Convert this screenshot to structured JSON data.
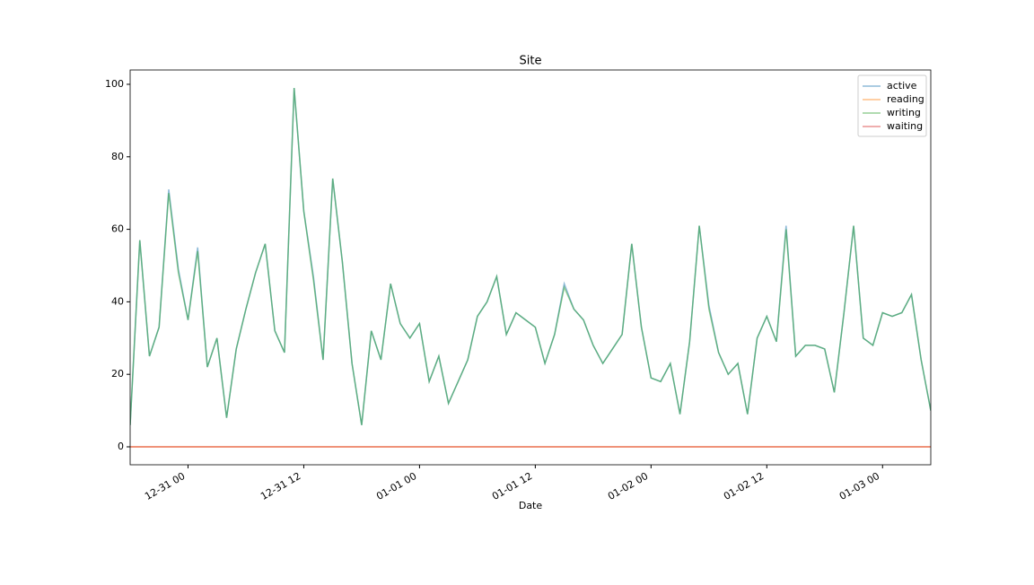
{
  "chart_data": {
    "type": "line",
    "title": "Site",
    "xlabel": "Date",
    "x": [
      "12-30 18",
      "12-30 19",
      "12-30 20",
      "12-30 21",
      "12-30 22",
      "12-30 23",
      "12-31 00",
      "12-31 01",
      "12-31 02",
      "12-31 03",
      "12-31 04",
      "12-31 05",
      "12-31 06",
      "12-31 07",
      "12-31 08",
      "12-31 09",
      "12-31 10",
      "12-31 11",
      "12-31 12",
      "12-31 13",
      "12-31 14",
      "12-31 15",
      "12-31 16",
      "12-31 17",
      "12-31 18",
      "12-31 19",
      "12-31 20",
      "12-31 21",
      "12-31 22",
      "12-31 23",
      "01-01 00",
      "01-01 01",
      "01-01 02",
      "01-01 03",
      "01-01 04",
      "01-01 05",
      "01-01 06",
      "01-01 07",
      "01-01 08",
      "01-01 09",
      "01-01 10",
      "01-01 11",
      "01-01 12",
      "01-01 13",
      "01-01 14",
      "01-01 15",
      "01-01 16",
      "01-01 17",
      "01-01 18",
      "01-01 19",
      "01-01 20",
      "01-01 21",
      "01-01 22",
      "01-01 23",
      "01-02 00",
      "01-02 01",
      "01-02 02",
      "01-02 03",
      "01-02 04",
      "01-02 05",
      "01-02 06",
      "01-02 07",
      "01-02 08",
      "01-02 09",
      "01-02 10",
      "01-02 11",
      "01-02 12",
      "01-02 13",
      "01-02 14",
      "01-02 15",
      "01-02 16",
      "01-02 17",
      "01-02 18",
      "01-02 19",
      "01-02 20",
      "01-02 21",
      "01-02 22",
      "01-02 23",
      "01-03 00",
      "01-03 01",
      "01-03 02",
      "01-03 03",
      "01-03 04",
      "01-03 05"
    ],
    "series": [
      {
        "name": "active",
        "color": "#1f77b4",
        "values": [
          6,
          57,
          25,
          33,
          71,
          49,
          35,
          55,
          22,
          30,
          8,
          27,
          38,
          48,
          56,
          32,
          26,
          99,
          65,
          47,
          24,
          74,
          51,
          23,
          6,
          32,
          24,
          45,
          34,
          30,
          34,
          18,
          25,
          12,
          18,
          24,
          36,
          40,
          47,
          31,
          37,
          35,
          33,
          23,
          31,
          45,
          38,
          35,
          28,
          23,
          27,
          31,
          56,
          33,
          19,
          18,
          23,
          9,
          29,
          61,
          39,
          26,
          20,
          23,
          9,
          30,
          36,
          29,
          61,
          25,
          28,
          28,
          27,
          15,
          37,
          61,
          30,
          28,
          37,
          36,
          37,
          42,
          24,
          10
        ]
      },
      {
        "name": "reading",
        "color": "#ff7f0e",
        "values": [
          0,
          0,
          0,
          0,
          0,
          0,
          0,
          0,
          0,
          0,
          0,
          0,
          0,
          0,
          0,
          0,
          0,
          0,
          0,
          0,
          0,
          0,
          0,
          0,
          0,
          0,
          0,
          0,
          0,
          0,
          0,
          0,
          0,
          0,
          0,
          0,
          0,
          0,
          0,
          0,
          0,
          0,
          0,
          0,
          0,
          0,
          0,
          0,
          0,
          0,
          0,
          0,
          0,
          0,
          0,
          0,
          0,
          0,
          0,
          0,
          0,
          0,
          0,
          0,
          0,
          0,
          0,
          0,
          0,
          0,
          0,
          0,
          0,
          0,
          0,
          0,
          0,
          0,
          0,
          0,
          0,
          0,
          0,
          0
        ]
      },
      {
        "name": "writing",
        "color": "#2ca02c",
        "values": [
          6,
          57,
          25,
          33,
          70,
          48,
          35,
          54,
          22,
          30,
          8,
          27,
          38,
          48,
          56,
          32,
          26,
          99,
          65,
          46,
          24,
          74,
          51,
          23,
          6,
          32,
          24,
          45,
          34,
          30,
          34,
          18,
          25,
          12,
          18,
          24,
          36,
          40,
          47,
          31,
          37,
          35,
          33,
          23,
          31,
          44,
          38,
          35,
          28,
          23,
          27,
          31,
          56,
          33,
          19,
          18,
          23,
          9,
          29,
          61,
          38,
          26,
          20,
          23,
          9,
          30,
          36,
          29,
          60,
          25,
          28,
          28,
          27,
          15,
          37,
          61,
          30,
          28,
          37,
          36,
          37,
          42,
          24,
          10
        ]
      },
      {
        "name": "waiting",
        "color": "#d62728",
        "values": [
          0,
          0,
          0,
          0,
          0,
          0,
          0,
          0,
          0,
          0,
          0,
          0,
          0,
          0,
          0,
          0,
          0,
          0,
          0,
          0,
          0,
          0,
          0,
          0,
          0,
          0,
          0,
          0,
          0,
          0,
          0,
          0,
          0,
          0,
          0,
          0,
          0,
          0,
          0,
          0,
          0,
          0,
          0,
          0,
          0,
          0,
          0,
          0,
          0,
          0,
          0,
          0,
          0,
          0,
          0,
          0,
          0,
          0,
          0,
          0,
          0,
          0,
          0,
          0,
          0,
          0,
          0,
          0,
          0,
          0,
          0,
          0,
          0,
          0,
          0,
          0,
          0,
          0,
          0,
          0,
          0,
          0,
          0,
          0
        ]
      }
    ],
    "xlim": [
      "12-30 18",
      "01-03 05"
    ],
    "xticks": [
      "12-31 00",
      "12-31 12",
      "01-01 00",
      "01-01 12",
      "01-02 00",
      "01-02 12",
      "01-03 00"
    ],
    "ylim": [
      -4.95,
      103.95
    ],
    "yticks": [
      0,
      20,
      40,
      60,
      80,
      100
    ],
    "legend": "upper right"
  }
}
